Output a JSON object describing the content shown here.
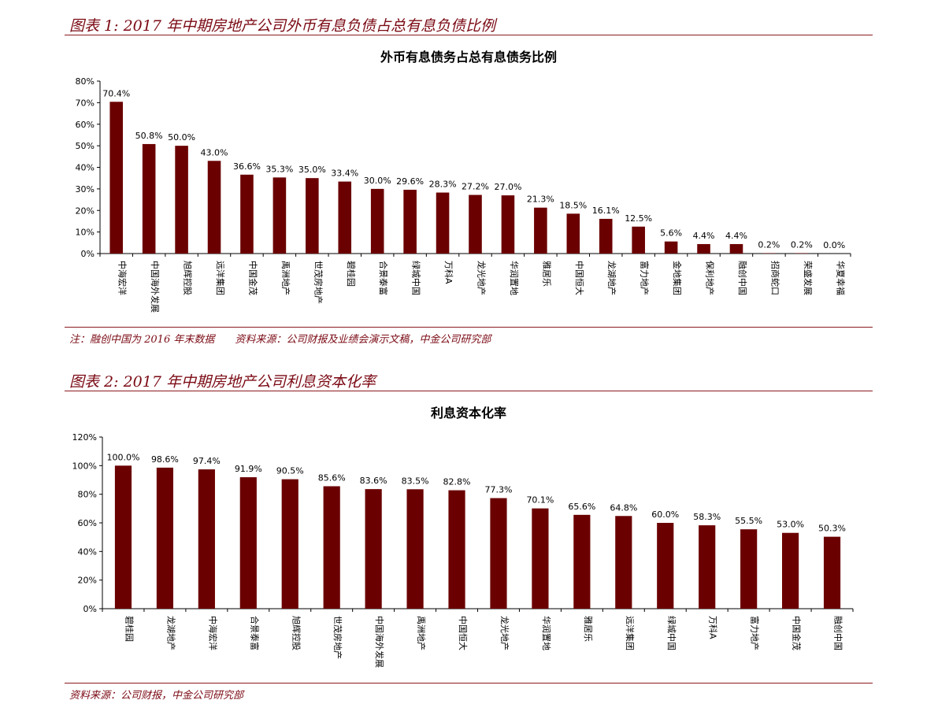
{
  "section1": {
    "figure_title": "图表 1: 2017 年中期房地产公司外币有息负债占总有息负债比例",
    "note": "注：融创中国为 2016 年末数据　　资料来源：公司财报及业绩会演示文稿，中金公司研究部"
  },
  "section2": {
    "figure_title": "图表 2: 2017 年中期房地产公司利息资本化率",
    "note": "资料来源：公司财报，中金公司研究部"
  },
  "chart_data": [
    {
      "type": "bar",
      "title": "外币有息债务占总有息债务比例",
      "xlabel": "",
      "ylabel": "",
      "ylim": [
        0,
        80
      ],
      "ytick_values": [
        0,
        10,
        20,
        30,
        40,
        50,
        60,
        70,
        80
      ],
      "ytick_labels": [
        "0%",
        "10%",
        "20%",
        "30%",
        "40%",
        "50%",
        "60%",
        "70%",
        "80%"
      ],
      "categories": [
        "中海宏洋",
        "中国海外发展",
        "旭辉控股",
        "远洋集团",
        "中国金茂",
        "禹洲地产",
        "世茂房地产",
        "碧桂园",
        "合景泰富",
        "绿城中国",
        "万科A",
        "龙光地产",
        "华润置地",
        "雅居乐",
        "中国恒大",
        "龙湖地产",
        "富力地产",
        "金地集团",
        "保利地产",
        "融创中国",
        "招商蛇口",
        "荣盛发展",
        "华夏幸福"
      ],
      "values": [
        70.4,
        50.8,
        50.0,
        43.0,
        36.6,
        35.3,
        35.0,
        33.4,
        30.0,
        29.6,
        28.3,
        27.2,
        27.0,
        21.3,
        18.5,
        16.1,
        12.5,
        5.6,
        4.4,
        4.4,
        0.2,
        0.2,
        0.0
      ],
      "data_labels": [
        "70.4%",
        "50.8%",
        "50.0%",
        "43.0%",
        "36.6%",
        "35.3%",
        "35.0%",
        "33.4%",
        "30.0%",
        "29.6%",
        "28.3%",
        "27.2%",
        "27.0%",
        "21.3%",
        "18.5%",
        "16.1%",
        "12.5%",
        "5.6%",
        "4.4%",
        "4.4%",
        "0.2%",
        "0.2%",
        "0.0%"
      ],
      "bar_color": "#6b0000",
      "grid": false,
      "legend": "none"
    },
    {
      "type": "bar",
      "title": "利息资本化率",
      "xlabel": "",
      "ylabel": "",
      "ylim": [
        0,
        120
      ],
      "ytick_values": [
        0,
        20,
        40,
        60,
        80,
        100,
        120
      ],
      "ytick_labels": [
        "0%",
        "20%",
        "40%",
        "60%",
        "80%",
        "100%",
        "120%"
      ],
      "categories": [
        "碧桂园",
        "龙湖地产",
        "中海宏洋",
        "合景泰富",
        "旭辉控股",
        "世茂房地产",
        "中国海外发展",
        "禹洲地产",
        "中国恒大",
        "龙光地产",
        "华润置地",
        "雅居乐",
        "远洋集团",
        "绿城中国",
        "万科A",
        "富力地产",
        "中国金茂",
        "融创中国"
      ],
      "values": [
        100.0,
        98.6,
        97.4,
        91.9,
        90.5,
        85.6,
        83.6,
        83.5,
        82.8,
        77.3,
        70.1,
        65.6,
        64.8,
        60.0,
        58.3,
        55.5,
        53.0,
        50.3
      ],
      "data_labels": [
        "100.0%",
        "98.6%",
        "97.4%",
        "91.9%",
        "90.5%",
        "85.6%",
        "83.6%",
        "83.5%",
        "82.8%",
        "77.3%",
        "70.1%",
        "65.6%",
        "64.8%",
        "60.0%",
        "58.3%",
        "55.5%",
        "53.0%",
        "50.3%"
      ],
      "bar_color": "#6b0000",
      "grid": false,
      "legend": "none"
    }
  ]
}
